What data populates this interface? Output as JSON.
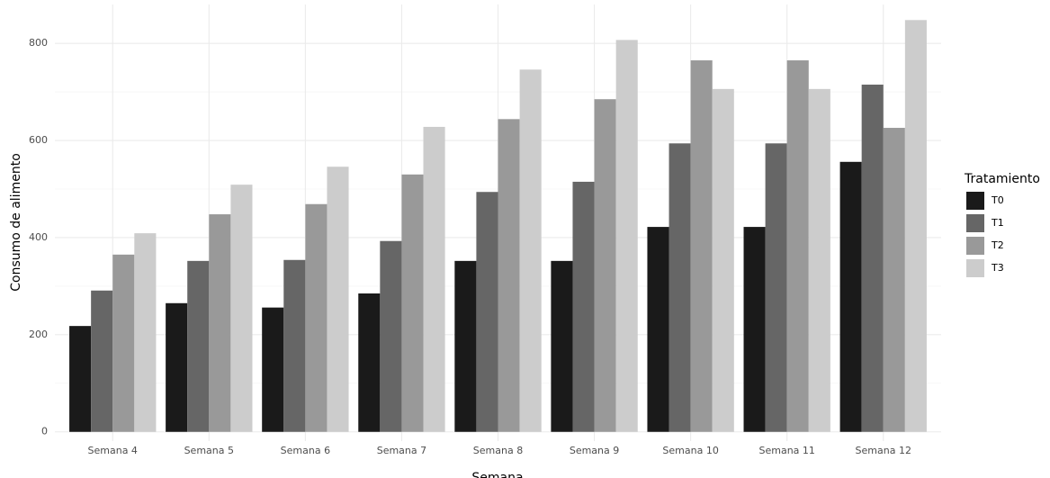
{
  "chart_data": {
    "type": "bar",
    "x_label": "Semana",
    "y_label": "Consumo de alimento",
    "legend_title": "Tratamiento",
    "legend_position": "right",
    "categories": [
      "Semana 4",
      "Semana 5",
      "Semana 6",
      "Semana 7",
      "Semana 8",
      "Semana 9",
      "Semana 10",
      "Semana 11",
      "Semana 12"
    ],
    "series": [
      {
        "name": "T0",
        "color": "#1a1a1a",
        "values": [
          218,
          265,
          256,
          285,
          352,
          352,
          422,
          422,
          556
        ]
      },
      {
        "name": "T1",
        "color": "#666666",
        "values": [
          291,
          352,
          354,
          393,
          494,
          515,
          594,
          594,
          715
        ]
      },
      {
        "name": "T2",
        "color": "#999999",
        "values": [
          365,
          448,
          469,
          530,
          644,
          685,
          765,
          765,
          626
        ]
      },
      {
        "name": "T3",
        "color": "#cccccc",
        "values": [
          409,
          509,
          546,
          628,
          746,
          807,
          706,
          706,
          848
        ]
      }
    ],
    "ylim": [
      -19,
      880
    ],
    "yticks": [
      0,
      200,
      400,
      600,
      800
    ],
    "minor_yticks": [
      100,
      300,
      500,
      700
    ],
    "grid": true
  }
}
